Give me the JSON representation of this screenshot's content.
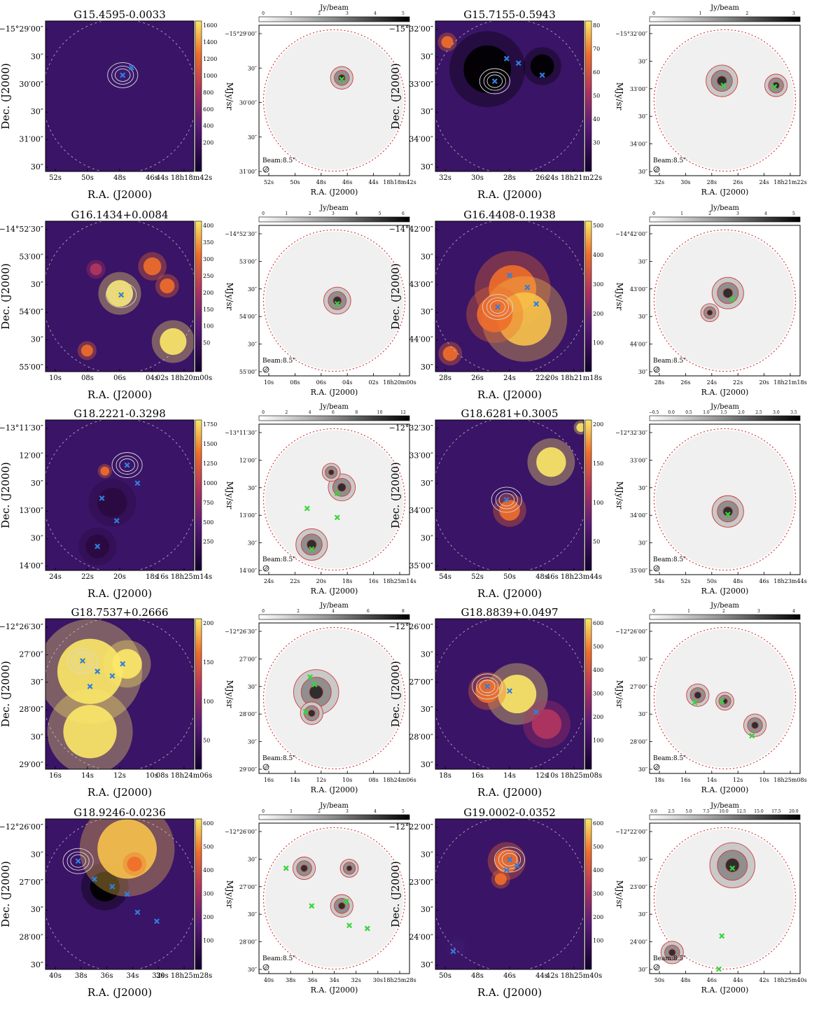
{
  "figure": {
    "colorbar_unit_ir": "MJy/sr",
    "colorbar_unit_mm": "Jy/beam",
    "ra_label": "R.A. (J2000)",
    "dec_label": "Dec. (J2000)",
    "beam_label": "Beam:8.5\"",
    "colors": {
      "ir_low": "#12002e",
      "ir_mid1": "#5a1a78",
      "ir_mid2": "#b3355f",
      "ir_mid3": "#ef6e2a",
      "ir_high": "#fce868",
      "contour_ir": "#d9d9d9",
      "contour_mm": "#d33b3b",
      "marker_blue": "#2f7fe0",
      "marker_green": "#38d43a"
    },
    "rows": [
      {
        "source": "G15.4595-0.0033",
        "ir_colorbar_ticks": [
          "1600",
          "1400",
          "1200",
          "1000",
          "800",
          "600",
          "400",
          "200"
        ],
        "ir_dec_ticks": [
          "−15°29′00″",
          "30″",
          "30′00″",
          "30″",
          "31′00″",
          "30″"
        ],
        "ir_ra_ticks": [
          "52s",
          "50s",
          "48s",
          "46s",
          "44s 18h18m42s"
        ],
        "mm_colorbar_ticks": [
          "0",
          "1",
          "2",
          "3",
          "4",
          "5"
        ],
        "mm_dec_ticks": [
          "−15°29′00″",
          "30″",
          "30′00″",
          "30″",
          "31′00″"
        ],
        "mm_ra_ticks": [
          "52s",
          "50s",
          "48s",
          "46s",
          "44s",
          "18h18m42s"
        ]
      },
      {
        "source": "G15.7155-0.5943",
        "ir_colorbar_ticks": [
          "80",
          "70",
          "60",
          "50",
          "40",
          "30"
        ],
        "ir_dec_ticks": [
          "−15°32′00″",
          "30″",
          "33′00″",
          "30″",
          "34′00″",
          "30″"
        ],
        "ir_ra_ticks": [
          "32s",
          "30s",
          "28s",
          "26s",
          "24s 18h21m22s"
        ],
        "mm_colorbar_ticks": [
          "0",
          "1",
          "2",
          "3"
        ],
        "mm_dec_ticks": [
          "−15°32′00″",
          "30″",
          "33′00″",
          "30″",
          "34′00″",
          "30″"
        ],
        "mm_ra_ticks": [
          "32s",
          "30s",
          "28s",
          "26s",
          "24s",
          "18h21m22s"
        ]
      },
      {
        "source": "G16.1434+0.0084",
        "ir_colorbar_ticks": [
          "400",
          "350",
          "300",
          "250",
          "200",
          "150",
          "100",
          "50"
        ],
        "ir_dec_ticks": [
          "−14°52′30″",
          "53′00″",
          "30″",
          "54′00″",
          "30″",
          "55′00″"
        ],
        "ir_ra_ticks": [
          "10s",
          "08s",
          "06s",
          "04s",
          "02s 18h20m00s"
        ],
        "mm_colorbar_ticks": [
          "0",
          "1",
          "2",
          "3",
          "4",
          "5",
          "6"
        ],
        "mm_dec_ticks": [
          "−14°52′30″",
          "53′00″",
          "30″",
          "54′00″",
          "30″",
          "55′00″"
        ],
        "mm_ra_ticks": [
          "10s",
          "08s",
          "06s",
          "04s",
          "02s",
          "18h20m00s"
        ]
      },
      {
        "source": "G16.4408-0.1938",
        "ir_colorbar_ticks": [
          "500",
          "400",
          "300",
          "200",
          "100"
        ],
        "ir_dec_ticks": [
          "−14°42′00″",
          "30″",
          "43′00″",
          "30″",
          "44′00″",
          "30″"
        ],
        "ir_ra_ticks": [
          "28s",
          "26s",
          "24s",
          "22s",
          "20s 18h21m18s"
        ],
        "mm_colorbar_ticks": [
          "0",
          "1",
          "2",
          "3",
          "4",
          "5"
        ],
        "mm_dec_ticks": [
          "−14°42′00″",
          "30″",
          "43′00″",
          "30″",
          "44′00″",
          "30″"
        ],
        "mm_ra_ticks": [
          "28s",
          "26s",
          "24s",
          "22s",
          "20s",
          "18h21m18s"
        ]
      },
      {
        "source": "G18.2221-0.3298",
        "ir_colorbar_ticks": [
          "1750",
          "1500",
          "1250",
          "1000",
          "750",
          "500",
          "250"
        ],
        "ir_dec_ticks": [
          "−13°11′30″",
          "12′00″",
          "30″",
          "13′00″",
          "30″",
          "14′00″"
        ],
        "ir_ra_ticks": [
          "24s",
          "22s",
          "20s",
          "18s",
          "16s 18h25m14s"
        ],
        "mm_colorbar_ticks": [
          "0",
          "2",
          "4",
          "6",
          "8",
          "10",
          "12"
        ],
        "mm_dec_ticks": [
          "−13°11′30″",
          "12′00″",
          "30″",
          "13′00″",
          "30″",
          "14′00″"
        ],
        "mm_ra_ticks": [
          "24s",
          "22s",
          "20s",
          "18s",
          "16s",
          "18h25m14s"
        ]
      },
      {
        "source": "G18.6281+0.3005",
        "ir_colorbar_ticks": [
          "200",
          "150",
          "100",
          "50"
        ],
        "ir_dec_ticks": [
          "−12°32′30″",
          "33′00″",
          "30″",
          "34′00″",
          "30″",
          "35′00″"
        ],
        "ir_ra_ticks": [
          "54s",
          "52s",
          "50s",
          "48s",
          "46s 18h23m44s"
        ],
        "mm_colorbar_ticks": [
          "−0.5",
          "0.0",
          "0.5",
          "1.0",
          "1.5",
          "2.0",
          "2.5",
          "3.0",
          "3.5"
        ],
        "mm_dec_ticks": [
          "−12°32′30″",
          "33′00″",
          "30″",
          "34′00″",
          "30″",
          "35′00″"
        ],
        "mm_ra_ticks": [
          "54s",
          "52s",
          "50s",
          "48s",
          "46s",
          "18h23m44s"
        ]
      },
      {
        "source": "G18.7537+0.2666",
        "ir_colorbar_ticks": [
          "200",
          "150",
          "100",
          "50"
        ],
        "ir_dec_ticks": [
          "−12°26′30″",
          "27′00″",
          "30″",
          "28′00″",
          "30″",
          "29′00″"
        ],
        "ir_ra_ticks": [
          "16s",
          "14s",
          "12s",
          "10s",
          "08s 18h24m06s"
        ],
        "mm_colorbar_ticks": [
          "0",
          "2",
          "4",
          "6",
          "8"
        ],
        "mm_dec_ticks": [
          "−12°26′30″",
          "27′00″",
          "30″",
          "28′00″",
          "30″",
          "29′00″"
        ],
        "mm_ra_ticks": [
          "16s",
          "14s",
          "12s",
          "10s",
          "08s",
          "18h24m06s"
        ]
      },
      {
        "source": "G18.8839+0.0497",
        "ir_colorbar_ticks": [
          "600",
          "500",
          "400",
          "300",
          "200",
          "100"
        ],
        "ir_dec_ticks": [
          "−12°26′00″",
          "30″",
          "27′00″",
          "30″",
          "28′00″",
          "30″"
        ],
        "ir_ra_ticks": [
          "18s",
          "16s",
          "14s",
          "12s",
          "10s 18h25m08s"
        ],
        "mm_colorbar_ticks": [
          "0",
          "1",
          "2",
          "3",
          "4"
        ],
        "mm_dec_ticks": [
          "−12°26′00″",
          "30″",
          "27′00″",
          "30″",
          "28′00″",
          "30″"
        ],
        "mm_ra_ticks": [
          "18s",
          "16s",
          "14s",
          "12s",
          "10s",
          "18h25m08s"
        ]
      },
      {
        "source": "G18.9246-0.0236",
        "ir_colorbar_ticks": [
          "600",
          "500",
          "400",
          "300",
          "200",
          "100"
        ],
        "ir_dec_ticks": [
          "−12°26′00″",
          "30″",
          "27′00″",
          "30″",
          "28′00″",
          "30″"
        ],
        "ir_ra_ticks": [
          "40s",
          "38s",
          "36s",
          "34s",
          "32s",
          "30s 18h25m28s"
        ],
        "mm_colorbar_ticks": [
          "0",
          "1",
          "2",
          "3",
          "4",
          "5"
        ],
        "mm_dec_ticks": [
          "−12°26′00″",
          "30″",
          "27′00″",
          "30″",
          "28′00″",
          "30″"
        ],
        "mm_ra_ticks": [
          "40s",
          "38s",
          "36s",
          "34s",
          "32s",
          "30s",
          "18h25m28s"
        ]
      },
      {
        "source": "G19.0002-0.0352",
        "ir_colorbar_ticks": [
          "600",
          "500",
          "400",
          "300",
          "200",
          "100"
        ],
        "ir_dec_ticks": [
          "−12°22′00″",
          "30″",
          "23′00″",
          "30″",
          "24′00″",
          "30″"
        ],
        "ir_ra_ticks": [
          "50s",
          "48s",
          "46s",
          "44s",
          "42s 18h25m40s"
        ],
        "mm_colorbar_ticks": [
          "0.0",
          "2.5",
          "5.0",
          "7.5",
          "10.0",
          "12.5",
          "15.0",
          "17.5",
          "20.0"
        ],
        "mm_dec_ticks": [
          "−12°22′00″",
          "30″",
          "23′00″",
          "30″",
          "24′00″",
          "30″"
        ],
        "mm_ra_ticks": [
          "50s",
          "48s",
          "46s",
          "44s",
          "42s",
          "18h25m40s"
        ]
      }
    ]
  }
}
